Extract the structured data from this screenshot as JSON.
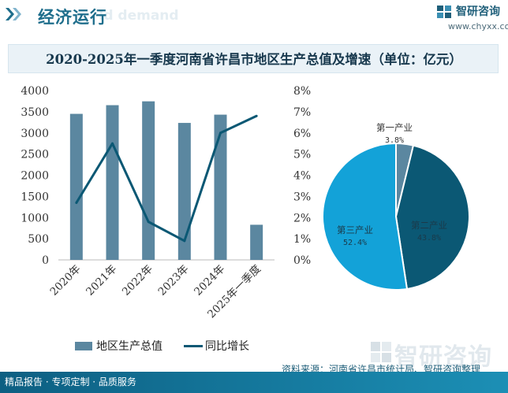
{
  "header": {
    "section_title": "经济运行",
    "section_subtitle": "Id demand",
    "brand_name": "智研咨询",
    "brand_url": "www.chyxx.com"
  },
  "chart_data": [
    {
      "type": "bar",
      "title": "2020-2025年一季度河南省许昌市地区生产总值及增速（单位：亿元）",
      "categories": [
        "2020年",
        "2021年",
        "2022年",
        "2023年",
        "2024年",
        "2025年一季度"
      ],
      "series": [
        {
          "name": "地区生产总值",
          "axis": "left",
          "values": [
            3450,
            3655,
            3746,
            3236,
            3431,
            830
          ]
        },
        {
          "name": "同比增长",
          "type": "line",
          "axis": "right",
          "values": [
            2.7,
            5.5,
            1.8,
            0.9,
            6.0,
            6.8
          ]
        }
      ],
      "y_left": {
        "min": 0,
        "max": 4000,
        "step": 500,
        "ticks": [
          "0",
          "500",
          "1000",
          "1500",
          "2000",
          "2500",
          "3000",
          "3500",
          "4000"
        ]
      },
      "y_right": {
        "min": 0,
        "max": 8,
        "step": 1,
        "ticks": [
          "0%",
          "1%",
          "2%",
          "3%",
          "4%",
          "5%",
          "6%",
          "7%",
          "8%"
        ]
      },
      "legend": "bottom",
      "grid": false
    },
    {
      "type": "pie",
      "slices": [
        {
          "name": "第一产业",
          "value": 3.8,
          "label": "3.8%",
          "color": "#5b87a0"
        },
        {
          "name": "第二产业",
          "value": 43.8,
          "label": "43.8%",
          "color": "#0b5874"
        },
        {
          "name": "第三产业",
          "value": 52.4,
          "label": "52.4%",
          "color": "#13a2d8"
        }
      ]
    }
  ],
  "legend": {
    "bar_label": "地区生产总值",
    "line_label": "同比增长"
  },
  "source": "资料来源：河南省许昌市统计局、智研咨询整理",
  "footer": "精品报告 · 专项定制 · 品质服务",
  "watermark": "智研咨询",
  "colors": {
    "bar": "#5b87a0",
    "line": "#0b5874",
    "accent": "#1f6e8c",
    "footer": "#0d5f82"
  }
}
